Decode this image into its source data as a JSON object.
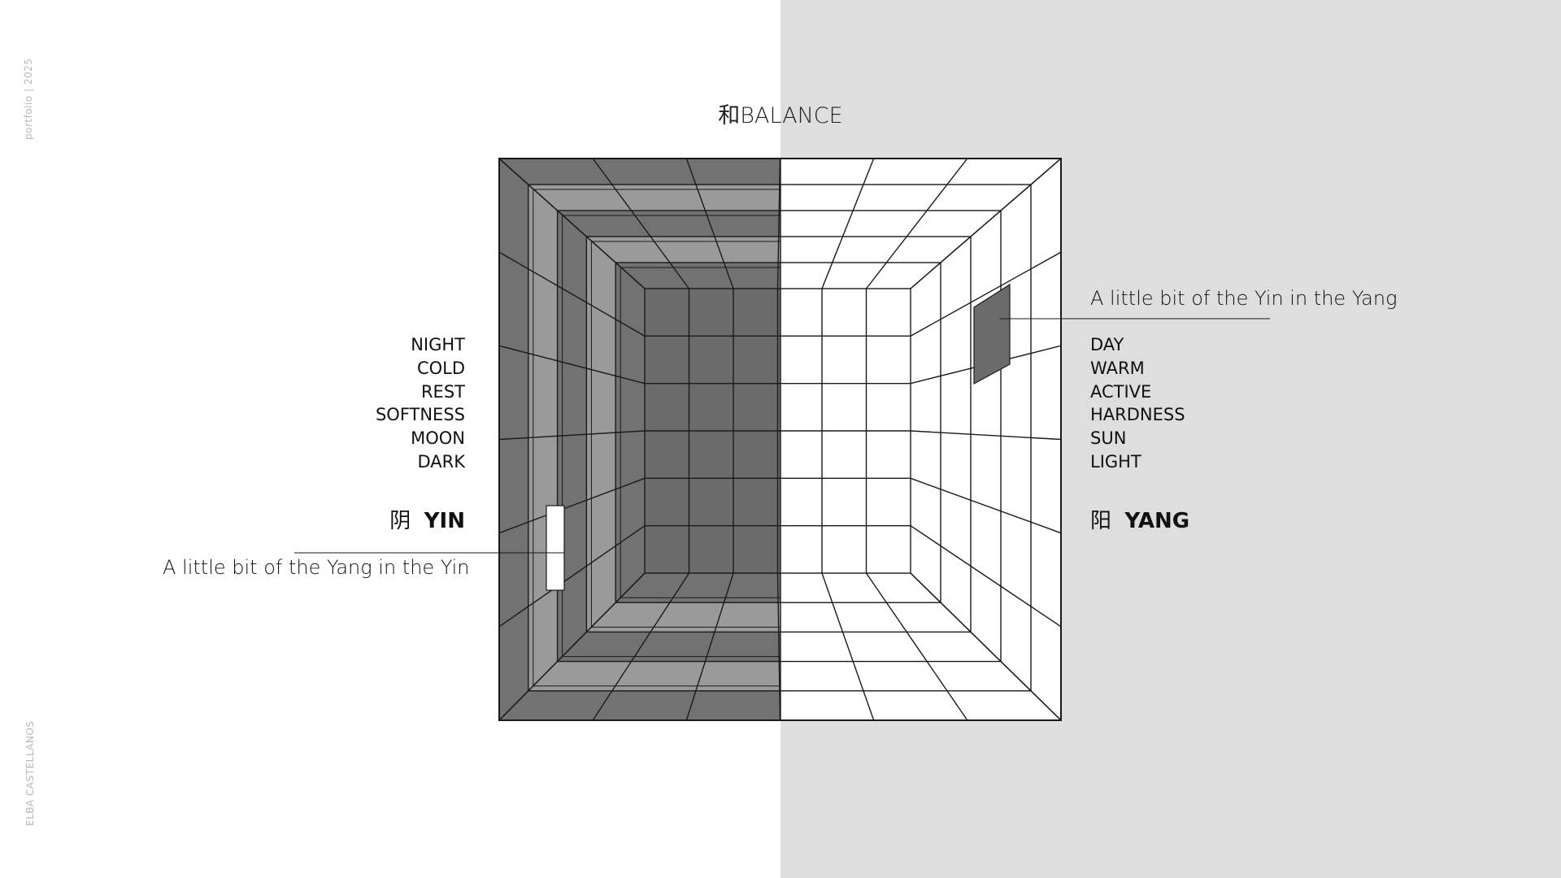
{
  "page": {
    "side_top_text": "portfolio | 2025",
    "side_bottom_text": "ELBA CASTELLANOS",
    "title": "和BALANCE"
  },
  "yin": {
    "words": [
      "NIGHT",
      "COLD",
      "REST",
      "SOFTNESS",
      "MOON",
      "DARK"
    ],
    "glyph": "阴",
    "label": "YIN",
    "note": "A little bit of the Yang in the Yin"
  },
  "yang": {
    "words": [
      "DAY",
      "WARM",
      "ACTIVE",
      "HARDNESS",
      "SUN",
      "LIGHT"
    ],
    "glyph": "阳",
    "label": "YANG",
    "note": "A little bit of the Yin in the Yang"
  },
  "colors": {
    "right_background": "#dededf",
    "dark_fill": "#6b6b6b",
    "mid_fill": "#9a9a9a",
    "light_fill": "#ffffff",
    "line": "#1a1a1a"
  }
}
